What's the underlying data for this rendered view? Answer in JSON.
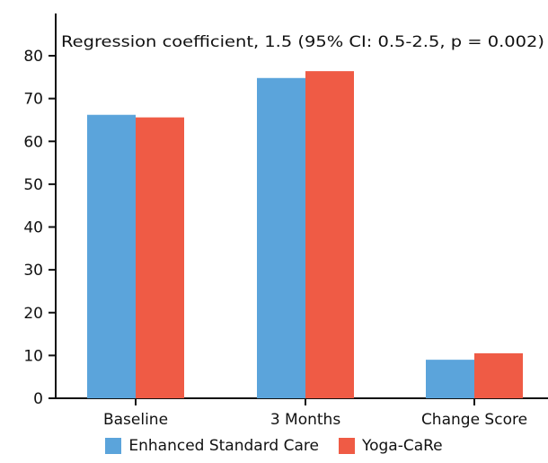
{
  "chart_data": {
    "type": "bar",
    "title": "",
    "annotation": "Regression coefficient, 1.5 (95% CI: 0.5-2.5, p = 0.002)",
    "xlabel": "",
    "ylabel": "",
    "categories": [
      "Baseline",
      "3 Months",
      "Change Score"
    ],
    "series": [
      {
        "name": "Enhanced Standard Care",
        "color": "#5ba4db",
        "values": [
          66.2,
          74.8,
          9.0
        ]
      },
      {
        "name": "Yoga-CaRe",
        "color": "#ef5b45",
        "values": [
          65.6,
          76.4,
          10.5
        ]
      }
    ],
    "ylim": [
      0,
      80
    ],
    "yticks": [
      0,
      10,
      20,
      30,
      40,
      50,
      60,
      70,
      80
    ],
    "grid": false,
    "legend_position": "bottom"
  }
}
